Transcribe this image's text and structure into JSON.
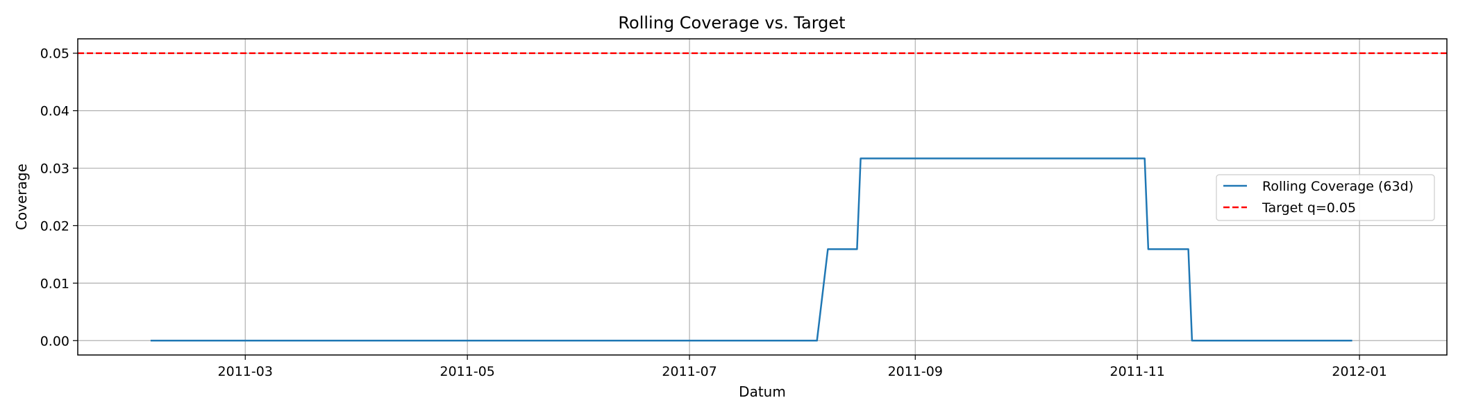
{
  "chart_data": {
    "type": "line",
    "title": "Rolling Coverage vs. Target",
    "xlabel": "Datum",
    "ylabel": "Coverage",
    "xlim": [
      "2011-01-14",
      "2012-01-25"
    ],
    "ylim": [
      -0.0025,
      0.0525
    ],
    "x_ticks": [
      "2011-03-01",
      "2011-05-01",
      "2011-07-01",
      "2011-09-01",
      "2011-11-01",
      "2012-01-01"
    ],
    "x_tick_labels": [
      "2011-03",
      "2011-05",
      "2011-07",
      "2011-09",
      "2011-11",
      "2012-01"
    ],
    "y_ticks": [
      0.0,
      0.01,
      0.02,
      0.03,
      0.04,
      0.05
    ],
    "y_tick_labels": [
      "0.00",
      "0.01",
      "0.02",
      "0.03",
      "0.04",
      "0.05"
    ],
    "grid": true,
    "legend_position": "right",
    "series": [
      {
        "name": "Rolling Coverage (63d)",
        "color": "#1f77b4",
        "style": "solid",
        "points": [
          [
            "2011-02-03",
            0.0
          ],
          [
            "2011-08-05",
            0.0
          ],
          [
            "2011-08-08",
            0.0159
          ],
          [
            "2011-08-16",
            0.0159
          ],
          [
            "2011-08-17",
            0.0317
          ],
          [
            "2011-11-03",
            0.0317
          ],
          [
            "2011-11-04",
            0.0159
          ],
          [
            "2011-11-15",
            0.0159
          ],
          [
            "2011-11-16",
            0.0
          ],
          [
            "2011-12-30",
            0.0
          ]
        ]
      },
      {
        "name": "Target q=0.05",
        "color": "#ff0000",
        "style": "dashed",
        "value": 0.05
      }
    ]
  }
}
